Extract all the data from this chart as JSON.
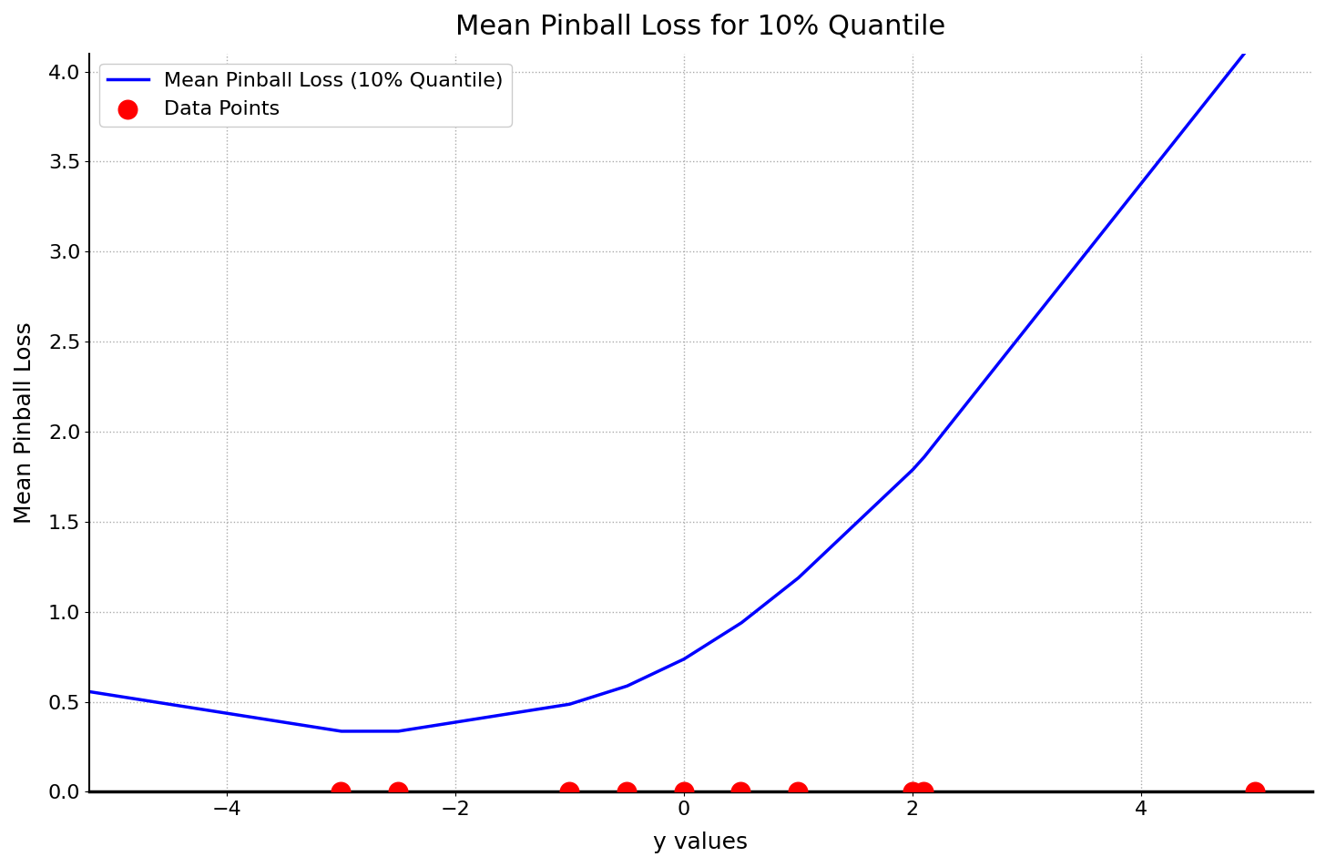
{
  "title": "Mean Pinball Loss for 10% Quantile",
  "xlabel": "y values",
  "ylabel": "Mean Pinball Loss",
  "quantile": 0.1,
  "data_points": [
    -3.0,
    -2.5,
    -1.0,
    -0.5,
    0.0,
    0.5,
    1.0,
    2.0,
    2.1,
    5.0
  ],
  "xlim": [
    -5.2,
    5.5
  ],
  "ylim": [
    0.0,
    4.1
  ],
  "line_color": "blue",
  "dot_color": "red",
  "dot_y": 0.0,
  "dot_size": 220,
  "grid_color": "#aaaaaa",
  "grid_style": ":",
  "legend_labels": [
    "Mean Pinball Loss (10% Quantile)",
    "Data Points"
  ],
  "title_fontsize": 22,
  "label_fontsize": 18,
  "tick_fontsize": 16,
  "legend_fontsize": 16,
  "line_width": 2.5,
  "figsize": [
    14.56,
    9.52
  ],
  "dpi": 100,
  "xticks": [
    -4,
    -2,
    0,
    2,
    4
  ],
  "yticks": [
    0.0,
    0.5,
    1.0,
    1.5,
    2.0,
    2.5,
    3.0,
    3.5,
    4.0
  ]
}
